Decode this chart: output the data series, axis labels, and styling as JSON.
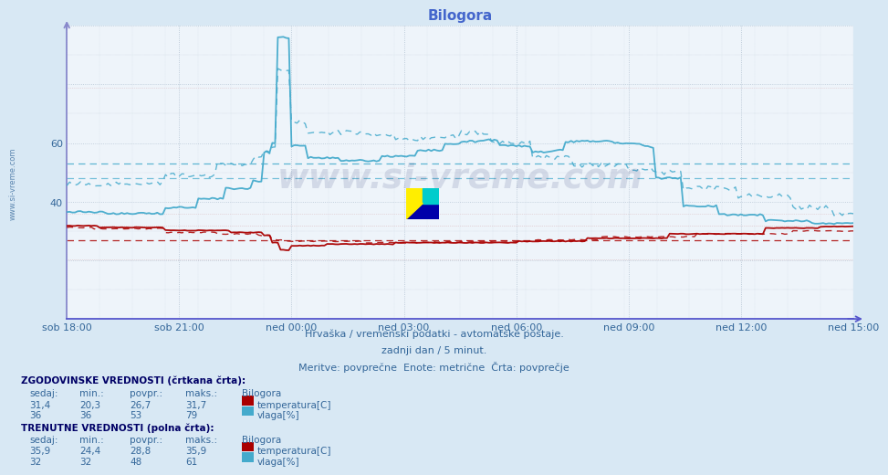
{
  "title": "Bilogora",
  "title_color": "#4466cc",
  "bg_color": "#d8e8f4",
  "plot_bg_color": "#eef4fa",
  "grid_color": "#aabbcc",
  "grid_color_red": "#cc8888",
  "temp_color": "#aa0000",
  "vlaga_color": "#44aacc",
  "axis_left_color": "#8888cc",
  "axis_bottom_color": "#5555cc",
  "footer_color": "#336699",
  "header_color": "#000066",
  "watermark_text": "www.si-vreme.com",
  "watermark_color": "#1a2a6b",
  "watermark_alpha": 0.13,
  "sidebar_text": "www.si-vreme.com",
  "xtick_labels": [
    "sob 18:00",
    "sob 21:00",
    "ned 00:00",
    "ned 03:00",
    "ned 06:00",
    "ned 09:00",
    "ned 12:00",
    "ned 15:00"
  ],
  "n_points": 288,
  "ylim": [
    0,
    100
  ],
  "ytick_vals": [
    40,
    60
  ],
  "hist_avg_temp": 26.7,
  "hist_avg_vlaga": 53.0,
  "hist_min_temp": 20.3,
  "hist_max_temp": 31.7,
  "hist_min_vlaga": 36.0,
  "hist_max_vlaga": 79.0,
  "curr_avg_temp": 28.8,
  "curr_avg_vlaga": 48.0,
  "subtitle1": "Hrvaška / vremenski podatki - avtomatske postaje.",
  "subtitle2": "zadnji dan / 5 minut.",
  "subtitle3": "Meritve: povprečne  Enote: metrične  Črta: povprečje",
  "hist_sedaj_temp": "31,4",
  "hist_min_temp_s": "20,3",
  "hist_povpr_temp": "26,7",
  "hist_maks_temp": "31,7",
  "hist_sedaj_vlaga": "36",
  "hist_min_vlaga_s": "36",
  "hist_povpr_vlaga": "53",
  "hist_maks_vlaga": "79",
  "curr_sedaj_temp": "35,9",
  "curr_min_temp": "24,4",
  "curr_povpr_temp": "28,8",
  "curr_maks_temp": "35,9",
  "curr_sedaj_vlaga": "32",
  "curr_min_vlaga": "32",
  "curr_povpr_vlaga": "48",
  "curr_maks_vlaga": "61"
}
